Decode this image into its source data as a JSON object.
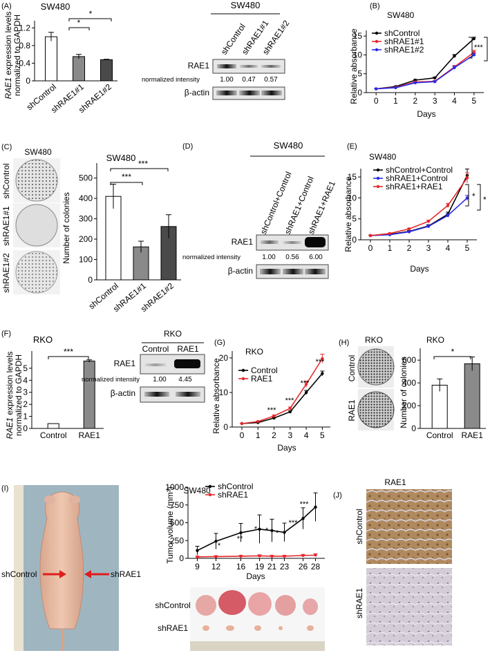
{
  "panels": {
    "A": {
      "letter": "(A)",
      "title": "SW480",
      "ylabel_italic": "RAE1",
      "ylabel_rest": " expression levels",
      "ylabel2": "normalized to GAPDH",
      "sig": [
        "*",
        "*"
      ],
      "blot": {
        "title": "SW480",
        "lanes": [
          "shControl",
          "shRAE1#1",
          "shRAE1#2"
        ],
        "protein": "RAE1",
        "norm_label": "normalized intensity",
        "norm_values": [
          "1.00",
          "0.47",
          "0.57"
        ],
        "loading": "β-actin"
      }
    },
    "B": {
      "letter": "(B)",
      "title": "SW480",
      "ylabel": "Relative absorbance",
      "xlabel": "Days",
      "sig": [
        "***",
        "***"
      ]
    },
    "C": {
      "letter": "(C)",
      "plate_title": "SW480",
      "plate_labels": [
        "shControl",
        "shRAE1#1",
        "shRAE1#2"
      ],
      "title": "SW480",
      "ylabel": "Number of colonies",
      "sig": [
        "***",
        "***"
      ]
    },
    "D": {
      "letter": "(D)",
      "title": "SW480",
      "lanes": [
        "shControl+Control",
        "shRAE1+Control",
        "shRAE1+RAE1"
      ],
      "protein": "RAE1",
      "norm_label": "normalized intensity",
      "norm_values": [
        "1.00",
        "0.56",
        "6.00"
      ],
      "loading": "β-actin"
    },
    "E": {
      "letter": "(E)",
      "title": "SW480",
      "ylabel": "Relative absorbance",
      "xlabel": "Days",
      "sig": [
        "*",
        "*"
      ]
    },
    "F": {
      "letter": "(F)",
      "title": "RKO",
      "ylabel_italic": "RAE1",
      "ylabel_rest": " expression levels",
      "ylabel2": "normalized to GAPDH",
      "sig": [
        "***"
      ],
      "blot": {
        "title": "RKO",
        "lanes": [
          "Control",
          "RAE1"
        ],
        "protein": "RAE1",
        "norm_label": "normalized intensity",
        "norm_values": [
          "1.00",
          "4.45"
        ],
        "loading": "β-actin"
      }
    },
    "G": {
      "letter": "(G)",
      "title": "RKO",
      "ylabel": "Relative absorbance",
      "xlabel": "Days",
      "sig": [
        "***",
        "***",
        "***",
        "***"
      ]
    },
    "H": {
      "letter": "(H)",
      "plate_title": "RKO",
      "plate_labels": [
        "Control",
        "RAE1"
      ],
      "title": "RKO",
      "ylabel": "Number of colonies",
      "sig": [
        "*"
      ]
    },
    "I": {
      "letter": "(I)",
      "title": "SW480",
      "ylabel": "Tumor volume (mm³)",
      "xlabel": "Days",
      "mouse_left_label": "shControl",
      "mouse_right_label": "shRAE1",
      "tumor_labels": [
        "shControl",
        "shRAE1"
      ],
      "sig": [
        "*",
        "**",
        "*",
        "*",
        "*",
        "***",
        "***"
      ]
    },
    "J": {
      "letter": "(J)",
      "title": "RAE1",
      "row_labels": [
        "shControl",
        "shRAE1"
      ]
    }
  },
  "chart_data": [
    {
      "panel": "A",
      "type": "bar",
      "categories": [
        "shControl",
        "shRAE1#1",
        "shRAE1#2"
      ],
      "values": [
        1.0,
        0.55,
        0.48
      ],
      "errors": [
        0.1,
        0.05,
        0.01
      ],
      "ylim": [
        0,
        1.3
      ],
      "yticks": [
        "0",
        "0.4",
        "0.8",
        "1.2"
      ],
      "colors": [
        "#ffffff",
        "#8a8a8a",
        "#4a4a4a"
      ]
    },
    {
      "panel": "B",
      "type": "line",
      "x": [
        0,
        1,
        2,
        3,
        4,
        5
      ],
      "xticks": [
        "0",
        "1",
        "2",
        "3",
        "4",
        "5"
      ],
      "ylim": [
        0,
        16.5
      ],
      "yticks": [
        "0",
        "5",
        "10",
        "15"
      ],
      "legend": "top-left",
      "series": [
        {
          "name": "shControl",
          "color": "#000000",
          "values": [
            1.0,
            1.6,
            3.3,
            3.9,
            9.7,
            14.3
          ],
          "errors": [
            0.1,
            0.1,
            0.2,
            0.2,
            0.4,
            0.4
          ]
        },
        {
          "name": "shRAE1#1",
          "color": "#e8262a",
          "values": [
            1.0,
            1.4,
            2.8,
            3.0,
            6.8,
            10.7
          ],
          "errors": [
            0.1,
            0.1,
            0.2,
            0.2,
            0.4,
            0.5
          ]
        },
        {
          "name": "shRAE1#2",
          "color": "#2a2ae8",
          "values": [
            1.0,
            1.3,
            2.6,
            2.9,
            6.6,
            10.0
          ],
          "errors": [
            0.1,
            0.1,
            0.2,
            0.2,
            0.4,
            0.4
          ]
        }
      ]
    },
    {
      "panel": "C",
      "type": "bar",
      "categories": [
        "shControl",
        "shRAE1#1",
        "shRAE1#2"
      ],
      "values": [
        410,
        162,
        262
      ],
      "errors": [
        60,
        28,
        58
      ],
      "ylim": [
        0,
        560
      ],
      "yticks": [
        "0",
        "100",
        "200",
        "300",
        "400",
        "500"
      ],
      "colors": [
        "#ffffff",
        "#8a8a8a",
        "#4a4a4a"
      ]
    },
    {
      "panel": "E",
      "type": "line",
      "x": [
        0,
        1,
        2,
        3,
        4,
        5
      ],
      "xticks": [
        "0",
        "1",
        "2",
        "3",
        "4",
        "5"
      ],
      "ylim": [
        0,
        17
      ],
      "yticks": [
        "0",
        "5",
        "10",
        "15"
      ],
      "legend": "top-left",
      "series": [
        {
          "name": "shControl+Control",
          "color": "#000000",
          "values": [
            1.0,
            1.3,
            2.0,
            3.3,
            6.1,
            15.4
          ],
          "errors": [
            0.1,
            0.1,
            0.2,
            0.3,
            0.5,
            1.5
          ]
        },
        {
          "name": "shRAE1+Control",
          "color": "#2a2ae8",
          "values": [
            1.0,
            1.2,
            1.9,
            3.2,
            5.8,
            10.0
          ],
          "errors": [
            0.1,
            0.1,
            0.2,
            0.3,
            0.4,
            0.6
          ]
        },
        {
          "name": "shRAE1+RAE1",
          "color": "#e8262a",
          "values": [
            1.0,
            1.5,
            2.6,
            4.4,
            8.2,
            14.8
          ],
          "errors": [
            0.1,
            0.1,
            0.2,
            0.3,
            0.5,
            1.2
          ]
        }
      ]
    },
    {
      "panel": "F",
      "type": "bar",
      "categories": [
        "Control",
        "RAE1"
      ],
      "values": [
        0.4,
        5.6
      ],
      "errors": [
        0.0,
        0.1
      ],
      "ylim": [
        0,
        6.2
      ],
      "yticks": [
        "0",
        "1",
        "2",
        "3",
        "4",
        "5"
      ],
      "colors": [
        "#ffffff",
        "#8a8a8a"
      ]
    },
    {
      "panel": "G",
      "type": "line",
      "x": [
        0,
        1,
        2,
        3,
        4,
        5
      ],
      "xticks": [
        "0",
        "1",
        "2",
        "3",
        "4",
        "5"
      ],
      "ylim": [
        0,
        22
      ],
      "yticks": [
        "0",
        "10",
        "20"
      ],
      "legend": "top-left",
      "series": [
        {
          "name": "Control",
          "color": "#000000",
          "values": [
            1.0,
            1.3,
            2.6,
            4.4,
            10.0,
            15.5
          ],
          "errors": [
            0.1,
            0.1,
            0.2,
            0.3,
            0.6,
            0.7
          ]
        },
        {
          "name": "RAE1",
          "color": "#e8262a",
          "values": [
            1.0,
            1.6,
            3.2,
            5.4,
            12.4,
            19.8
          ],
          "errors": [
            0.1,
            0.1,
            0.3,
            0.4,
            0.9,
            1.3
          ]
        }
      ]
    },
    {
      "panel": "H",
      "type": "bar",
      "categories": [
        "Control",
        "RAE1"
      ],
      "values": [
        380,
        568
      ],
      "errors": [
        55,
        60
      ],
      "ylim": [
        0,
        680
      ],
      "yticks": [
        "0",
        "200",
        "400",
        "600"
      ],
      "colors": [
        "#ffffff",
        "#8a8a8a"
      ]
    },
    {
      "panel": "I",
      "type": "line",
      "x": [
        9,
        12,
        16,
        19,
        21,
        23,
        26,
        28
      ],
      "xticks": [
        "9",
        "12",
        "16",
        "19",
        "21",
        "23",
        "26",
        "28"
      ],
      "ylim": [
        0,
        1000
      ],
      "yticks": [
        "0",
        "250",
        "500",
        "750",
        "1000"
      ],
      "legend": "top-left",
      "series": [
        {
          "name": "shControl",
          "color": "#000000",
          "values": [
            110,
            240,
            360,
            410,
            390,
            365,
            560,
            720
          ],
          "errors": [
            60,
            110,
            130,
            200,
            160,
            130,
            150,
            200
          ]
        },
        {
          "name": "shRAE1",
          "color": "#e8262a",
          "values": [
            20,
            25,
            30,
            35,
            30,
            30,
            40,
            45
          ],
          "errors": [
            10,
            12,
            12,
            15,
            12,
            12,
            15,
            20
          ]
        }
      ]
    }
  ]
}
